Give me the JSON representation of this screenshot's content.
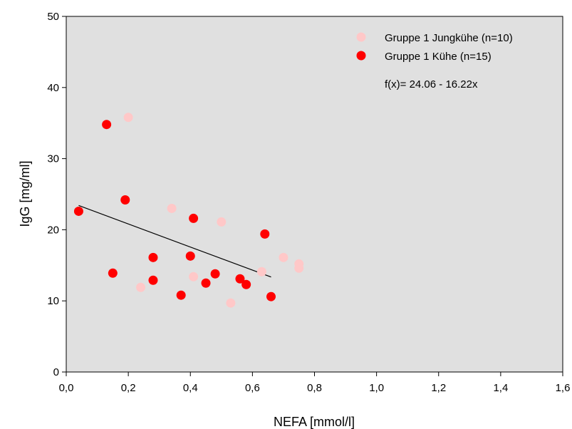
{
  "chart_data": {
    "type": "scatter",
    "xlabel": "NEFA [mmol/l]",
    "ylabel": "IgG [mg/ml]",
    "xlim": [
      0,
      1.6
    ],
    "ylim": [
      0,
      50
    ],
    "xticks": [
      0,
      0.2,
      0.4,
      0.6,
      0.8,
      1.0,
      1.2,
      1.4,
      1.6
    ],
    "xtick_labels": [
      "0,0",
      "0,2",
      "0,4",
      "0,6",
      "0,8",
      "1,0",
      "1,2",
      "1,4",
      "1,6"
    ],
    "yticks": [
      0,
      10,
      20,
      30,
      40,
      50
    ],
    "ytick_labels": [
      "0",
      "10",
      "20",
      "30",
      "40",
      "50"
    ],
    "grid": false,
    "background_color": "#e0e0e0",
    "legend_position": "top-right",
    "series": [
      {
        "name": "Gruppe 1 Jungkühe (n=10)",
        "color": "#ffc8c8",
        "x": [
          0.2,
          0.24,
          0.34,
          0.41,
          0.5,
          0.53,
          0.63,
          0.7,
          0.75,
          0.75
        ],
        "y": [
          35.8,
          11.9,
          23.0,
          13.4,
          21.1,
          9.7,
          14.1,
          16.1,
          15.2,
          14.6
        ]
      },
      {
        "name": "Gruppe 1 Kühe (n=15)",
        "color": "#ff0000",
        "x": [
          0.04,
          0.13,
          0.15,
          0.19,
          0.28,
          0.28,
          0.37,
          0.4,
          0.41,
          0.45,
          0.48,
          0.56,
          0.58,
          0.64,
          0.66
        ],
        "y": [
          22.6,
          34.8,
          13.9,
          24.2,
          16.1,
          12.9,
          10.8,
          16.3,
          21.6,
          12.5,
          13.8,
          13.1,
          12.3,
          19.4,
          10.6
        ]
      }
    ],
    "regression": {
      "label": "f(x)= 24.06 - 16.22x",
      "intercept": 24.06,
      "slope": -16.22,
      "x_range": [
        0.04,
        0.66
      ]
    }
  }
}
